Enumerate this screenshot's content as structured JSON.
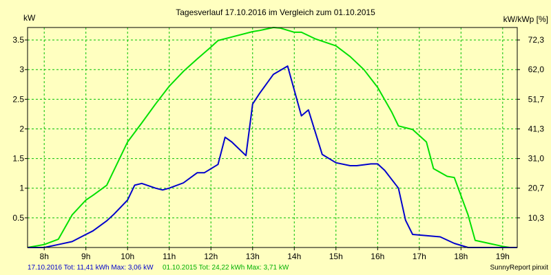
{
  "chart_data": {
    "type": "line",
    "title": "Tagesverlauf 17.10.2016 im Vergleich zum 01.10.2015",
    "ylabel_left": "kW",
    "ylabel_right": "kW/kWp [%]",
    "xlim": [
      7.6,
      19.35
    ],
    "ylim": [
      0,
      3.71
    ],
    "x_ticks": [
      8,
      9,
      10,
      11,
      12,
      13,
      14,
      15,
      16,
      17,
      18,
      19
    ],
    "x_tick_labels": [
      "8h",
      "9h",
      "10h",
      "11h",
      "12h",
      "13h",
      "14h",
      "15h",
      "16h",
      "17h",
      "18h",
      "19h"
    ],
    "y_ticks_left": [
      0.5,
      1,
      1.5,
      2,
      2.5,
      3,
      3.5
    ],
    "y_tick_labels_left": [
      "0.5",
      "1",
      "1.5",
      "2",
      "2.5",
      "3",
      "3.5"
    ],
    "y_ticks_right": [
      0.5,
      1,
      1.5,
      2,
      2.5,
      3,
      3.5
    ],
    "y_tick_labels_right": [
      "10,3",
      "20,7",
      "31,0",
      "41,3",
      "51,7",
      "62,0",
      "72,3"
    ],
    "grid": true,
    "series": [
      {
        "name": "17.10.2016",
        "color": "#0000cc",
        "points": [
          [
            7.6,
            0
          ],
          [
            8.0,
            0
          ],
          [
            8.34,
            0.05
          ],
          [
            8.67,
            0.1
          ],
          [
            9.0,
            0.22
          ],
          [
            9.17,
            0.28
          ],
          [
            9.5,
            0.45
          ],
          [
            9.67,
            0.56
          ],
          [
            10.0,
            0.8
          ],
          [
            10.17,
            1.05
          ],
          [
            10.34,
            1.08
          ],
          [
            10.67,
            1.0
          ],
          [
            10.84,
            0.97
          ],
          [
            11.0,
            1.0
          ],
          [
            11.34,
            1.09
          ],
          [
            11.67,
            1.26
          ],
          [
            11.84,
            1.26
          ],
          [
            12.17,
            1.4
          ],
          [
            12.34,
            1.86
          ],
          [
            12.5,
            1.78
          ],
          [
            12.84,
            1.55
          ],
          [
            13.0,
            2.42
          ],
          [
            13.17,
            2.6
          ],
          [
            13.5,
            2.92
          ],
          [
            13.84,
            3.06
          ],
          [
            14.17,
            2.22
          ],
          [
            14.34,
            2.32
          ],
          [
            14.67,
            1.57
          ],
          [
            15.0,
            1.43
          ],
          [
            15.34,
            1.38
          ],
          [
            15.5,
            1.38
          ],
          [
            15.84,
            1.41
          ],
          [
            16.0,
            1.41
          ],
          [
            16.17,
            1.3
          ],
          [
            16.5,
            1.0
          ],
          [
            16.67,
            0.46
          ],
          [
            16.84,
            0.22
          ],
          [
            17.17,
            0.2
          ],
          [
            17.5,
            0.18
          ],
          [
            17.84,
            0.07
          ],
          [
            18.17,
            0
          ],
          [
            19.35,
            0
          ]
        ]
      },
      {
        "name": "01.10.2015",
        "color": "#00e000",
        "points": [
          [
            7.6,
            0
          ],
          [
            8.0,
            0.05
          ],
          [
            8.34,
            0.14
          ],
          [
            8.67,
            0.55
          ],
          [
            9.0,
            0.8
          ],
          [
            9.17,
            0.88
          ],
          [
            9.5,
            1.05
          ],
          [
            9.67,
            1.3
          ],
          [
            10.0,
            1.78
          ],
          [
            10.34,
            2.1
          ],
          [
            10.67,
            2.42
          ],
          [
            11.0,
            2.72
          ],
          [
            11.34,
            2.97
          ],
          [
            11.67,
            3.18
          ],
          [
            12.0,
            3.38
          ],
          [
            12.17,
            3.49
          ],
          [
            12.5,
            3.55
          ],
          [
            13.0,
            3.64
          ],
          [
            13.17,
            3.66
          ],
          [
            13.5,
            3.71
          ],
          [
            13.67,
            3.7
          ],
          [
            14.0,
            3.63
          ],
          [
            14.17,
            3.63
          ],
          [
            14.5,
            3.52
          ],
          [
            15.0,
            3.4
          ],
          [
            15.34,
            3.22
          ],
          [
            15.67,
            3.0
          ],
          [
            16.0,
            2.7
          ],
          [
            16.34,
            2.28
          ],
          [
            16.5,
            2.05
          ],
          [
            16.84,
            1.99
          ],
          [
            17.17,
            1.78
          ],
          [
            17.34,
            1.33
          ],
          [
            17.67,
            1.2
          ],
          [
            17.84,
            1.18
          ],
          [
            18.17,
            0.55
          ],
          [
            18.34,
            0.12
          ],
          [
            18.67,
            0.07
          ],
          [
            19.0,
            0.02
          ],
          [
            19.17,
            0
          ],
          [
            19.35,
            0
          ]
        ]
      }
    ]
  },
  "footer": {
    "series1_summary": "17.10.2016 Tot: 11,41 kWh Max: 3,06 kW",
    "series2_summary": "01.10.2015 Tot: 24,22 kWh Max: 3,71 kW",
    "credit": "SunnyReport pinxit"
  }
}
